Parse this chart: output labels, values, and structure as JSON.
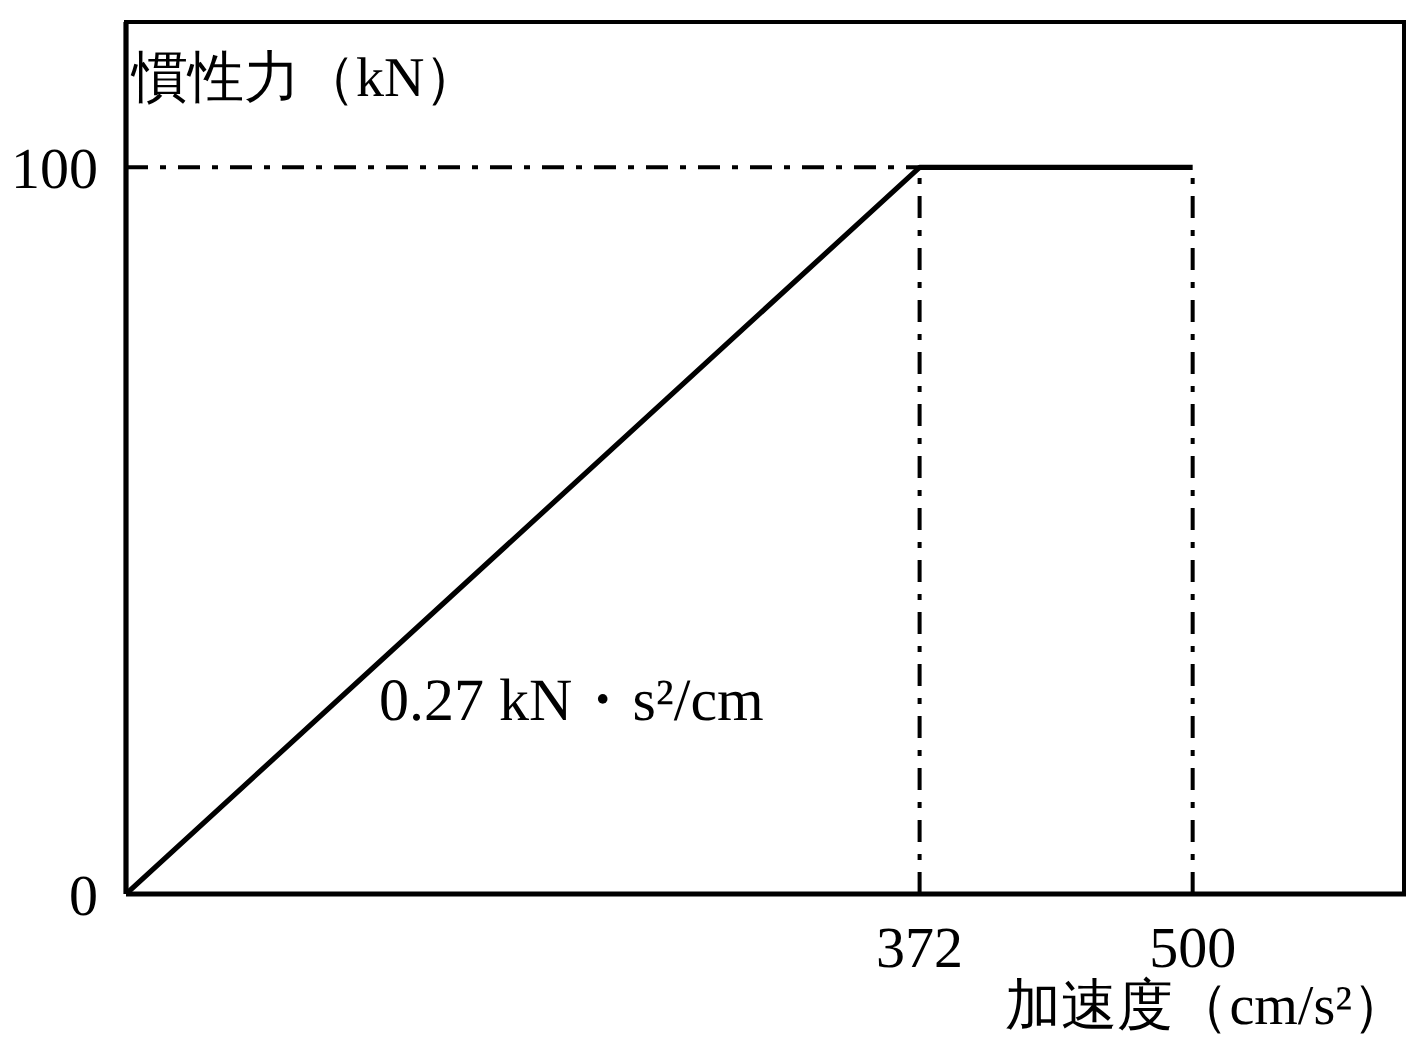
{
  "chart_data": {
    "type": "line",
    "x": [
      0,
      372,
      500
    ],
    "values": [
      0,
      100,
      100
    ],
    "color": "#000000",
    "marker": "none",
    "line_style": "solid",
    "xlabel": "加速度（cm/s²）",
    "ylabel": "慣性力（kN）",
    "xlim": [
      0,
      600
    ],
    "xticks": [
      372,
      500
    ],
    "ylim": [
      0,
      120
    ],
    "yticks": [
      0,
      100
    ],
    "ref_lines": [
      {
        "axis": "y",
        "value": 100,
        "color": "#000000",
        "line_style": "dashed"
      },
      {
        "axis": "x",
        "value": 372,
        "color": "#000000",
        "line_style": "dashed"
      },
      {
        "axis": "x",
        "value": 500,
        "color": "#000000",
        "line_style": "dashed"
      }
    ],
    "annotations": [
      "0.27 kN・s²/cm"
    ]
  }
}
